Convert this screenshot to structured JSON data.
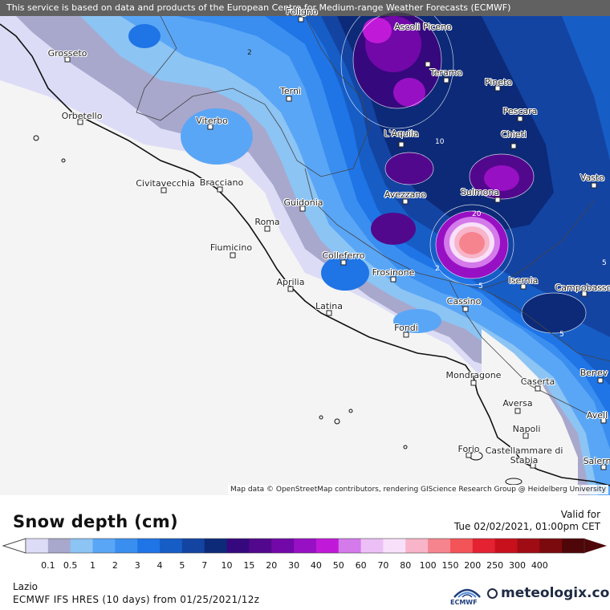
{
  "header": {
    "notice": "This service is based on data and products of the European Centre for Medium-range Weather Forecasts (ECMWF)"
  },
  "map": {
    "attribution": "Map data © OpenStreetMap contributors, rendering GIScience Research Group @ Heidelberg University",
    "cities": [
      {
        "name": "Foligno"
      },
      {
        "name": "Ascoli Piceno"
      },
      {
        "name": "Grosseto"
      },
      {
        "name": "Teramo"
      },
      {
        "name": "Pineto"
      },
      {
        "name": "Terni"
      },
      {
        "name": "Pescara"
      },
      {
        "name": "Orbetello"
      },
      {
        "name": "Viterbo"
      },
      {
        "name": "Chieti"
      },
      {
        "name": "L'Aquila"
      },
      {
        "name": "Vasto"
      },
      {
        "name": "Civitavecchia"
      },
      {
        "name": "Bracciano"
      },
      {
        "name": "Avezzano"
      },
      {
        "name": "Sulmona"
      },
      {
        "name": "Guidonia"
      },
      {
        "name": "Roma"
      },
      {
        "name": "Fiumicino"
      },
      {
        "name": "Colleferro"
      },
      {
        "name": "Frosinone"
      },
      {
        "name": "Aprilia"
      },
      {
        "name": "Isernia"
      },
      {
        "name": "Campobasso"
      },
      {
        "name": "Latina"
      },
      {
        "name": "Cassino"
      },
      {
        "name": "Fondi"
      },
      {
        "name": "Mondragone"
      },
      {
        "name": "Caserta"
      },
      {
        "name": "Benev"
      },
      {
        "name": "Aversa"
      },
      {
        "name": "Napoli"
      },
      {
        "name": "Avell"
      },
      {
        "name": "Forio"
      },
      {
        "name": "Castellammare di Stabia"
      },
      {
        "name": "Salern"
      }
    ],
    "contour_labels": [
      "2",
      "10",
      "20",
      "2",
      "5",
      "5",
      "5"
    ]
  },
  "legend": {
    "title": "Snow depth (cm)",
    "valid_label": "Valid for",
    "valid_time": "Tue 02/02/2021, 01:00pm CET",
    "ticks": [
      "0.1",
      "0.5",
      "1",
      "2",
      "3",
      "4",
      "5",
      "7",
      "10",
      "15",
      "20",
      "30",
      "40",
      "50",
      "60",
      "70",
      "80",
      "100",
      "150",
      "200",
      "250",
      "300",
      "400"
    ],
    "colors": [
      "#dcdcf6",
      "#a8a8cc",
      "#8cc4f4",
      "#5aa6f6",
      "#3a8ef0",
      "#1f74e6",
      "#165dc6",
      "#1444a2",
      "#0c2a78",
      "#36087e",
      "#52088c",
      "#7208a8",
      "#9810c4",
      "#c01ad8",
      "#d47aea",
      "#ecc0f6",
      "#f8e0fa",
      "#f8b4c8",
      "#f6848e",
      "#f25458",
      "#e42232",
      "#c8101c",
      "#a00c14",
      "#7a0a0e",
      "#4e0608"
    ]
  },
  "footer": {
    "region": "Lazio",
    "model": "ECMWF IFS HRES (10 days) from 01/25/2021/12z",
    "ecmwf_logo": "ECMWF",
    "brand": "meteologix.com"
  }
}
